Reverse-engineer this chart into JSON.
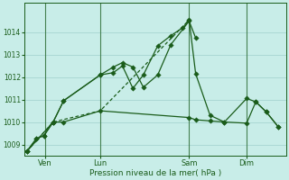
{
  "xlabel": "Pression niveau de la mer( hPa )",
  "bg_color": "#c8ede8",
  "grid_color": "#9fcfcc",
  "line_color": "#1a5c1a",
  "ylim": [
    1008.5,
    1015.3
  ],
  "yticks": [
    1009,
    1010,
    1011,
    1012,
    1013,
    1014
  ],
  "xtick_labels": [
    "Ven",
    "Lun",
    "Sam",
    "Dim"
  ],
  "xtick_positions": [
    0.07,
    0.28,
    0.62,
    0.84
  ],
  "vline_positions": [
    0.07,
    0.28,
    0.62,
    0.84
  ],
  "series1_solid": {
    "x": [
      0.0,
      0.035,
      0.065,
      0.1,
      0.14,
      0.28,
      0.33,
      0.365,
      0.405,
      0.445,
      0.5,
      0.55,
      0.62,
      0.645
    ],
    "y": [
      1008.7,
      1009.25,
      1009.4,
      1010.0,
      1010.95,
      1012.1,
      1012.45,
      1012.65,
      1012.45,
      1011.55,
      1012.1,
      1013.45,
      1014.5,
      1013.75
    ]
  },
  "series2_solid": {
    "x": [
      0.0,
      0.035,
      0.065,
      0.1,
      0.14,
      0.28,
      0.33,
      0.365,
      0.405,
      0.445,
      0.5,
      0.55,
      0.595,
      0.62,
      0.645,
      0.7,
      0.755,
      0.84,
      0.875,
      0.915,
      0.96
    ],
    "y": [
      1008.7,
      1009.25,
      1009.4,
      1010.0,
      1010.95,
      1012.1,
      1012.2,
      1012.5,
      1011.5,
      1012.1,
      1013.4,
      1013.85,
      1014.2,
      1014.55,
      1012.15,
      1010.3,
      1010.0,
      1011.05,
      1010.9,
      1010.45,
      1009.8
    ]
  },
  "series3_flat": {
    "x": [
      0.0,
      0.1,
      0.14,
      0.28,
      0.62,
      0.645,
      0.7,
      0.755,
      0.84,
      0.875,
      0.915,
      0.96
    ],
    "y": [
      1008.7,
      1010.0,
      1010.0,
      1010.5,
      1010.2,
      1010.1,
      1010.05,
      1010.0,
      1009.95,
      1010.9,
      1010.45,
      1009.8
    ]
  },
  "series4_dashed": {
    "x": [
      0.0,
      0.1,
      0.28,
      0.62
    ],
    "y": [
      1008.7,
      1010.0,
      1010.5,
      1014.55
    ]
  }
}
